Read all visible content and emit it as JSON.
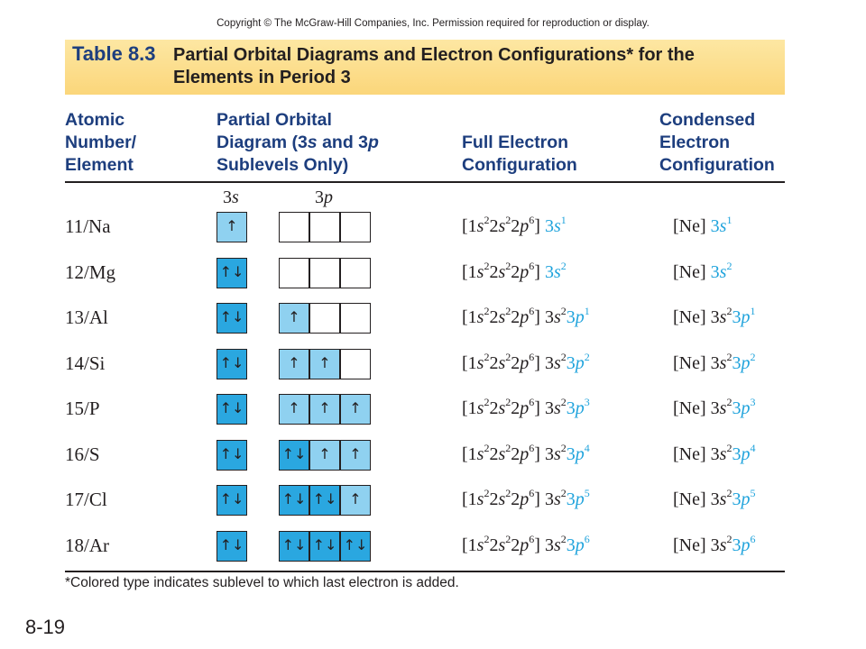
{
  "copyright": "Copyright © The McGraw-Hill Companies, Inc. Permission required for reproduction or display.",
  "table_number": "Table 8.3",
  "title_line1": "Partial Orbital Diagrams and Electron Configurations* for the",
  "title_line2": "Elements in Period 3",
  "headers": {
    "col1": [
      "Atomic",
      "Number/",
      "Element"
    ],
    "col2_line1": "Partial Orbital",
    "col2_line2a": "Diagram (3",
    "col2_line2b": "s",
    "col2_line2c": " and 3",
    "col2_line2d": "p",
    "col2_line3": "Sublevels Only)",
    "col3": [
      "Full Electron",
      "Configuration"
    ],
    "col4": [
      "Condensed",
      "Electron",
      "Configuration"
    ]
  },
  "sublevel_3s_num": "3",
  "sublevel_3s_letter": "s",
  "sublevel_3p_num": "3",
  "sublevel_3p_letter": "p",
  "rows": [
    {
      "element": "11/Na",
      "orb3s": "↑",
      "orb3p": [
        "",
        "",
        ""
      ],
      "fill3s": "light",
      "fill3p": [
        "none",
        "none",
        "none"
      ],
      "last": "3s",
      "s_e": "1",
      "p_e": ""
    },
    {
      "element": "12/Mg",
      "orb3s": "↑↓",
      "orb3p": [
        "",
        "",
        ""
      ],
      "fill3s": "dark",
      "fill3p": [
        "none",
        "none",
        "none"
      ],
      "last": "3s",
      "s_e": "2",
      "p_e": ""
    },
    {
      "element": "13/Al",
      "orb3s": "↑↓",
      "orb3p": [
        "↑",
        "",
        ""
      ],
      "fill3s": "dark",
      "fill3p": [
        "light",
        "none",
        "none"
      ],
      "last": "3p",
      "s_e": "2",
      "p_e": "1"
    },
    {
      "element": "14/Si",
      "orb3s": "↑↓",
      "orb3p": [
        "↑",
        "↑",
        ""
      ],
      "fill3s": "dark",
      "fill3p": [
        "light",
        "light",
        "none"
      ],
      "last": "3p",
      "s_e": "2",
      "p_e": "2"
    },
    {
      "element": "15/P",
      "orb3s": "↑↓",
      "orb3p": [
        "↑",
        "↑",
        "↑"
      ],
      "fill3s": "dark",
      "fill3p": [
        "light",
        "light",
        "light"
      ],
      "last": "3p",
      "s_e": "2",
      "p_e": "3"
    },
    {
      "element": "16/S",
      "orb3s": "↑↓",
      "orb3p": [
        "↑↓",
        "↑",
        "↑"
      ],
      "fill3s": "dark",
      "fill3p": [
        "dark",
        "light",
        "light"
      ],
      "last": "3p",
      "s_e": "2",
      "p_e": "4"
    },
    {
      "element": "17/Cl",
      "orb3s": "↑↓",
      "orb3p": [
        "↑↓",
        "↑↓",
        "↑"
      ],
      "fill3s": "dark",
      "fill3p": [
        "dark",
        "dark",
        "light"
      ],
      "last": "3p",
      "s_e": "2",
      "p_e": "5"
    },
    {
      "element": "18/Ar",
      "orb3s": "↑↓",
      "orb3p": [
        "↑↓",
        "↑↓",
        "↑↓"
      ],
      "fill3s": "dark",
      "fill3p": [
        "dark",
        "dark",
        "dark"
      ],
      "last": "3p",
      "s_e": "2",
      "p_e": "6"
    }
  ],
  "core_full": "[1s22s22p6]",
  "core_condensed": "[Ne]",
  "footnote": "*Colored type indicates sublevel to which last electron is added.",
  "slide_number": "8-19",
  "colors": {
    "title_blue": "#1d3e7e",
    "highlight": "#1fa3dc",
    "light_orbital": "#8fd1f0",
    "dark_orbital": "#2aa7e0",
    "title_band": "#fbd67a"
  }
}
